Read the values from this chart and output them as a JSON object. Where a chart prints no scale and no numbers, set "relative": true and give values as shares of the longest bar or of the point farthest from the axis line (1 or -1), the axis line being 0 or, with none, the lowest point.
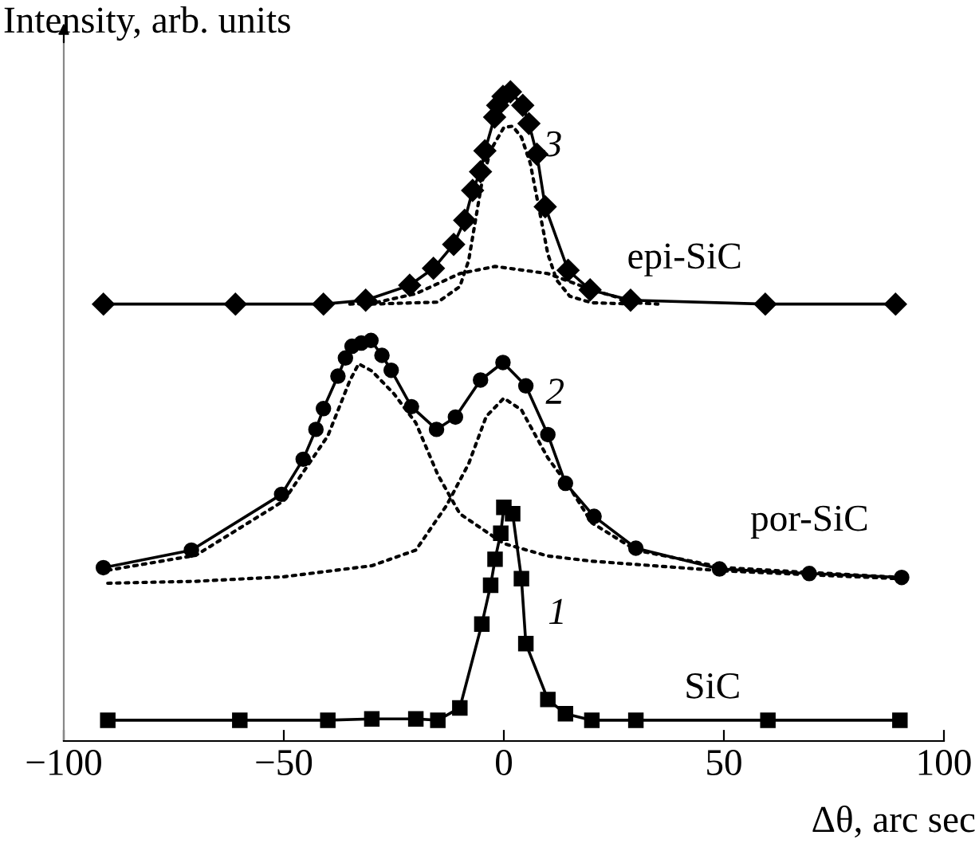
{
  "chart_data": {
    "type": "line",
    "relative": true,
    "xlabel": "Δθ, arc sec",
    "ylabel": "Intensity, arb. units",
    "xlim": [
      -100,
      100
    ],
    "xticks": [
      {
        "value": -100,
        "label": "−100"
      },
      {
        "value": -50,
        "label": "−50"
      },
      0,
      50,
      100
    ],
    "tick_labels": "x",
    "grid": false,
    "legend": false,
    "series": [
      {
        "name": "1",
        "color": "#000000",
        "marker": "square",
        "line_style": "solid",
        "x": [
          -90,
          -60,
          -40,
          -30,
          -20,
          -15,
          -10,
          -5,
          -3,
          -2,
          -0.7,
          0,
          2,
          4,
          5,
          10,
          14,
          20,
          30,
          60,
          90
        ],
        "values": [
          0.032,
          0.032,
          0.032,
          0.034,
          0.034,
          0.032,
          0.051,
          0.18,
          0.24,
          0.28,
          0.32,
          0.36,
          0.35,
          0.25,
          0.15,
          0.064,
          0.042,
          0.032,
          0.032,
          0.032,
          0.032
        ]
      },
      {
        "name": "2",
        "color": "#000000",
        "marker": "circle",
        "line_style": "solid",
        "x": [
          -91,
          -71,
          -50.5,
          -45.6,
          -42.7,
          -41,
          -37.7,
          -36,
          -34.5,
          -32.4,
          -30.2,
          -27.7,
          -25.6,
          -21,
          -15.3,
          -11,
          -5.3,
          -0.2,
          5,
          10,
          14,
          20.5,
          30,
          49,
          69.4,
          90.4
        ],
        "values": [
          0.267,
          0.294,
          0.38,
          0.434,
          0.48,
          0.512,
          0.562,
          0.59,
          0.608,
          0.613,
          0.617,
          0.594,
          0.571,
          0.515,
          0.48,
          0.499,
          0.556,
          0.583,
          0.547,
          0.472,
          0.397,
          0.346,
          0.297,
          0.265,
          0.258,
          0.252
        ]
      },
      {
        "color": "#000000",
        "marker": "none",
        "line_style": "dotted",
        "x": [
          -90,
          -70,
          -50,
          -45,
          -40,
          -35,
          -33,
          -30,
          -25,
          -20,
          -15,
          -10,
          0,
          10,
          20,
          50,
          90
        ],
        "values": [
          0.263,
          0.286,
          0.37,
          0.42,
          0.47,
          0.555,
          0.581,
          0.57,
          0.535,
          0.49,
          0.41,
          0.35,
          0.304,
          0.285,
          0.277,
          0.262,
          0.25
        ]
      },
      {
        "color": "#000000",
        "marker": "none",
        "line_style": "dotted",
        "x": [
          -90,
          -70,
          -50,
          -30,
          -20,
          -13,
          -8,
          -4,
          0,
          4,
          10,
          15,
          20,
          30,
          50,
          90
        ],
        "values": [
          0.243,
          0.246,
          0.253,
          0.27,
          0.294,
          0.363,
          0.427,
          0.5,
          0.528,
          0.51,
          0.436,
          0.39,
          0.336,
          0.294,
          0.267,
          0.252
        ]
      },
      {
        "name": "3",
        "color": "#000000",
        "marker": "diamond",
        "line_style": "solid",
        "x": [
          -91,
          -61,
          -41,
          -31.4,
          -21.4,
          -16,
          -11.4,
          -8.9,
          -7.1,
          -5.3,
          -4.3,
          -2.1,
          -1.4,
          -0.2,
          1.5,
          4.3,
          5.7,
          7.5,
          9.4,
          14.6,
          19.6,
          28.8,
          59.4,
          89
        ],
        "values": [
          0.673,
          0.673,
          0.673,
          0.679,
          0.702,
          0.728,
          0.765,
          0.802,
          0.848,
          0.877,
          0.909,
          0.961,
          0.979,
          0.993,
          1.0,
          0.979,
          0.951,
          0.904,
          0.823,
          0.725,
          0.695,
          0.679,
          0.673,
          0.673
        ]
      },
      {
        "color": "#000000",
        "marker": "none",
        "line_style": "dotted",
        "x": [
          -30,
          -15,
          -10,
          -8,
          -5,
          -3,
          0,
          2,
          4,
          6,
          8,
          10,
          12,
          15,
          20,
          30
        ],
        "values": [
          0.673,
          0.676,
          0.7,
          0.74,
          0.86,
          0.91,
          0.945,
          0.947,
          0.93,
          0.89,
          0.82,
          0.75,
          0.71,
          0.685,
          0.675,
          0.673
        ]
      },
      {
        "color": "#000000",
        "marker": "none",
        "line_style": "dotted",
        "x": [
          -35,
          -30,
          -20,
          -10,
          -2,
          10,
          20,
          30,
          35
        ],
        "values": [
          0.673,
          0.674,
          0.689,
          0.72,
          0.731,
          0.72,
          0.695,
          0.675,
          0.673
        ]
      }
    ],
    "annotations": [
      "epi-SiC",
      "por-SiC",
      "SiC"
    ]
  }
}
